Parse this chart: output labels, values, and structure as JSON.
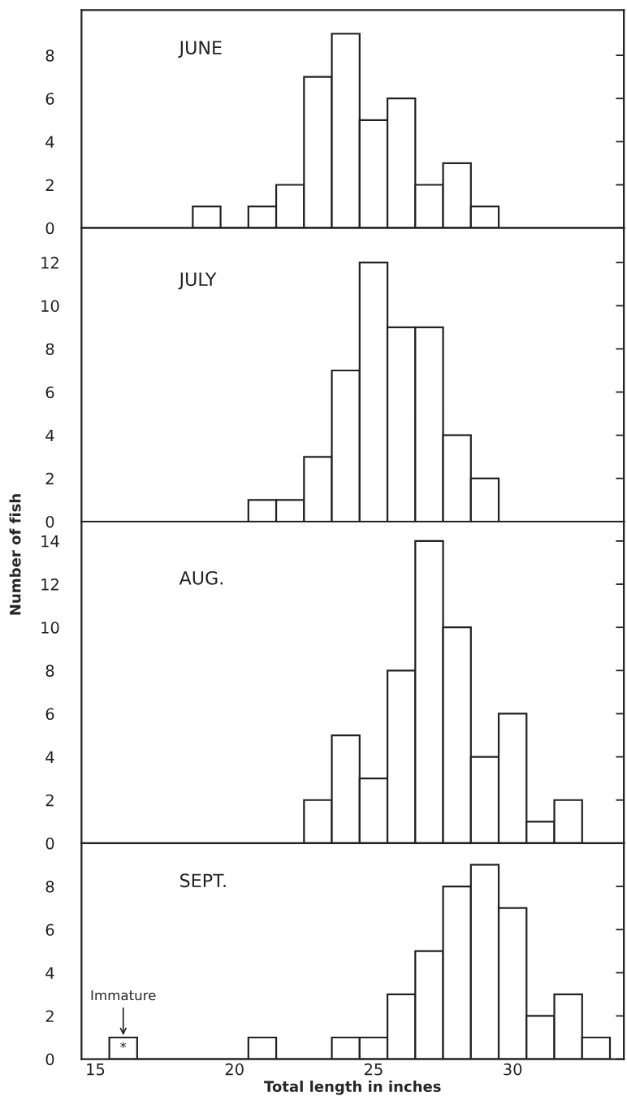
{
  "chart_data": [
    {
      "type": "histogram",
      "title": "JUNE",
      "color": "#ffffff",
      "bins": [
        18.5,
        19.5,
        20.5,
        21.5,
        22.5,
        23.5,
        24.5,
        25.5,
        26.5,
        27.5,
        28.5,
        29.5
      ],
      "values": [
        1,
        0,
        1,
        2,
        7,
        9,
        5,
        6,
        2,
        3,
        1
      ],
      "xlim": [
        14.5,
        34
      ],
      "xticks": [
        15,
        20,
        25,
        30
      ],
      "ylim": [
        0,
        10.1
      ],
      "yticks": [
        0,
        2,
        4,
        6,
        8
      ],
      "tick_labels": "y",
      "grid": false
    },
    {
      "type": "histogram",
      "title": "JULY",
      "ylabel": "Number of fish",
      "color": "#ffffff",
      "bins": [
        20.5,
        21.5,
        22.5,
        23.5,
        24.5,
        25.5,
        26.5,
        27.5,
        28.5,
        29.5
      ],
      "values": [
        1,
        1,
        3,
        7,
        12,
        9,
        9,
        4,
        2
      ],
      "xlim": [
        14.5,
        34
      ],
      "xticks": [
        15,
        20,
        25,
        30
      ],
      "ylim": [
        0,
        13.6
      ],
      "yticks": [
        0,
        2,
        4,
        6,
        8,
        10,
        12
      ],
      "tick_labels": "y",
      "grid": false
    },
    {
      "type": "histogram",
      "title": "AUG.",
      "color": "#ffffff",
      "bins": [
        22.5,
        23.5,
        24.5,
        25.5,
        26.5,
        27.5,
        28.5,
        29.5,
        30.5,
        31.5,
        32.5
      ],
      "values": [
        2,
        5,
        3,
        8,
        14,
        10,
        4,
        6,
        1,
        2
      ],
      "xlim": [
        14.5,
        34
      ],
      "xticks": [
        15,
        20,
        25,
        30
      ],
      "ylim": [
        0,
        14.9
      ],
      "yticks": [
        0,
        2,
        4,
        6,
        8,
        10,
        12,
        14
      ],
      "tick_labels": "y",
      "grid": false
    },
    {
      "type": "histogram",
      "title": "SEPT.",
      "xlabel": "Total length in inches",
      "color": "#ffffff",
      "bins": [
        15.5,
        16.5,
        17.5,
        18.5,
        19.5,
        20.5,
        21.5,
        22.5,
        23.5,
        24.5,
        25.5,
        26.5,
        27.5,
        28.5,
        29.5,
        30.5,
        31.5,
        32.5,
        33.5
      ],
      "values": [
        1,
        0,
        0,
        0,
        0,
        1,
        0,
        0,
        1,
        1,
        3,
        5,
        8,
        9,
        7,
        2,
        3,
        1
      ],
      "xlim": [
        14.5,
        34
      ],
      "xticks": [
        15,
        20,
        25,
        30
      ],
      "ylim": [
        0,
        10
      ],
      "yticks": [
        0,
        2,
        4,
        6,
        8
      ],
      "grid": false,
      "annotations": [
        {
          "text": "Immature",
          "x": 16,
          "y": 1
        },
        "*"
      ]
    }
  ]
}
